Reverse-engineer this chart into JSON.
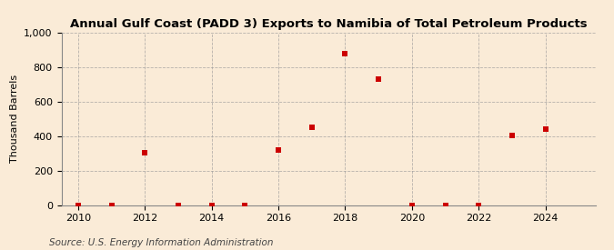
{
  "title": "Annual Gulf Coast (PADD 3) Exports to Namibia of Total Petroleum Products",
  "ylabel": "Thousand Barrels",
  "source": "Source: U.S. Energy Information Administration",
  "background_color": "#faebd7",
  "plot_bg_color": "#faebd7",
  "x_data": [
    2010,
    2011,
    2012,
    2013,
    2014,
    2015,
    2016,
    2017,
    2018,
    2019,
    2020,
    2021,
    2022,
    2023,
    2024
  ],
  "y_data": [
    0,
    0,
    305,
    0,
    0,
    0,
    320,
    450,
    880,
    730,
    0,
    0,
    0,
    405,
    440
  ],
  "marker_color": "#cc0000",
  "marker_size": 16,
  "marker_style": "s",
  "xlim": [
    2009.5,
    2025.5
  ],
  "ylim": [
    0,
    1000
  ],
  "yticks": [
    0,
    200,
    400,
    600,
    800,
    1000
  ],
  "xticks": [
    2010,
    2012,
    2014,
    2016,
    2018,
    2020,
    2022,
    2024
  ],
  "grid_color": "#999999",
  "grid_style": "--",
  "title_fontsize": 9.5,
  "axis_fontsize": 8,
  "tick_fontsize": 8,
  "source_fontsize": 7.5
}
